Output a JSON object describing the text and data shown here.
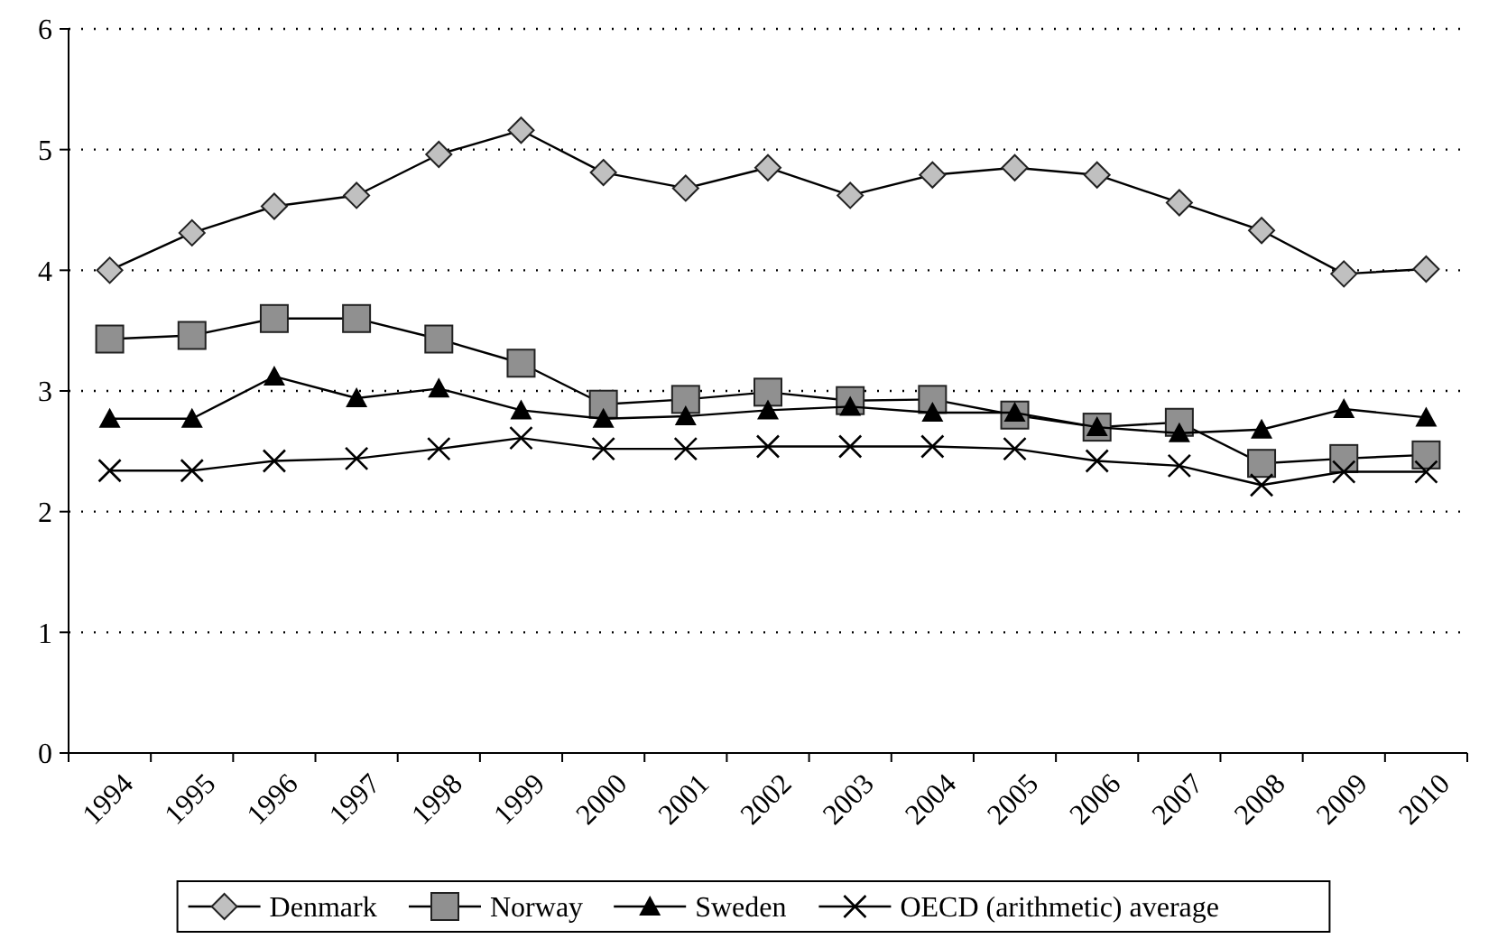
{
  "chart_data": {
    "type": "line",
    "categories": [
      "1994",
      "1995",
      "1996",
      "1997",
      "1998",
      "1999",
      "2000",
      "2001",
      "2002",
      "2003",
      "2004",
      "2005",
      "2006",
      "2007",
      "2008",
      "2009",
      "2010"
    ],
    "series": [
      {
        "name": "Denmark",
        "color": "#c0c0c0",
        "marker": "diamond",
        "values": [
          4.0,
          4.31,
          4.53,
          4.62,
          4.96,
          5.16,
          4.81,
          4.68,
          4.85,
          4.62,
          4.79,
          4.85,
          4.79,
          4.56,
          4.33,
          3.97,
          4.01
        ]
      },
      {
        "name": "Norway",
        "color": "#909090",
        "marker": "square",
        "values": [
          3.43,
          3.46,
          3.6,
          3.6,
          3.43,
          3.23,
          2.89,
          2.93,
          2.99,
          2.92,
          2.93,
          2.8,
          2.7,
          2.74,
          2.4,
          2.44,
          2.47
        ]
      },
      {
        "name": "Sweden",
        "color": "#000000",
        "marker": "triangle",
        "values": [
          2.77,
          2.77,
          3.12,
          2.94,
          3.02,
          2.84,
          2.77,
          2.79,
          2.84,
          2.87,
          2.82,
          2.82,
          2.7,
          2.65,
          2.68,
          2.85,
          2.78
        ]
      },
      {
        "name": "OECD (arithmetic) average",
        "color": "#000000",
        "marker": "cross",
        "values": [
          2.34,
          2.34,
          2.42,
          2.44,
          2.52,
          2.61,
          2.52,
          2.52,
          2.54,
          2.54,
          2.54,
          2.52,
          2.42,
          2.38,
          2.22,
          2.33,
          2.33
        ]
      }
    ],
    "ylim": [
      0,
      6
    ],
    "yticks": [
      0,
      1,
      2,
      3,
      4,
      5,
      6
    ],
    "grid": "y",
    "legend": "bottom",
    "line_style": "solid"
  }
}
